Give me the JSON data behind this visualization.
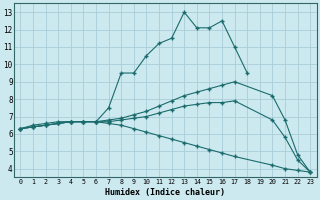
{
  "xlabel": "Humidex (Indice chaleur)",
  "bg_color": "#cce9f0",
  "grid_color": "#aacdd8",
  "line_color": "#1a6b6b",
  "xlim": [
    -0.5,
    23.5
  ],
  "ylim": [
    3.5,
    13.5
  ],
  "xticks": [
    0,
    1,
    2,
    3,
    4,
    5,
    6,
    7,
    8,
    9,
    10,
    11,
    12,
    13,
    14,
    15,
    16,
    17,
    18,
    19,
    20,
    21,
    22,
    23
  ],
  "yticks": [
    4,
    5,
    6,
    7,
    8,
    9,
    10,
    11,
    12,
    13
  ],
  "series1_x": [
    0,
    1,
    2,
    3,
    4,
    5,
    6,
    7,
    8,
    9,
    10,
    11,
    12,
    13,
    14,
    15,
    16,
    17,
    18
  ],
  "series1_y": [
    6.3,
    6.5,
    6.6,
    6.7,
    6.7,
    6.7,
    6.7,
    7.5,
    9.5,
    9.5,
    10.5,
    11.2,
    11.5,
    13.0,
    12.1,
    12.1,
    12.5,
    11.0,
    9.5
  ],
  "series2_x": [
    0,
    1,
    2,
    3,
    4,
    5,
    6,
    7,
    8,
    9,
    10,
    11,
    12,
    13,
    14,
    15,
    16,
    17,
    20,
    21,
    22,
    23
  ],
  "series2_y": [
    6.3,
    6.4,
    6.5,
    6.6,
    6.7,
    6.7,
    6.7,
    6.8,
    6.9,
    7.1,
    7.3,
    7.6,
    7.9,
    8.2,
    8.4,
    8.6,
    8.8,
    9.0,
    8.2,
    6.8,
    4.8,
    3.8
  ],
  "series3_x": [
    0,
    1,
    2,
    3,
    4,
    5,
    6,
    7,
    8,
    9,
    10,
    11,
    12,
    13,
    14,
    15,
    16,
    17,
    20,
    21,
    22,
    23
  ],
  "series3_y": [
    6.3,
    6.4,
    6.5,
    6.6,
    6.7,
    6.7,
    6.7,
    6.7,
    6.8,
    6.9,
    7.0,
    7.2,
    7.4,
    7.6,
    7.7,
    7.8,
    7.8,
    7.9,
    6.8,
    5.8,
    4.5,
    3.8
  ],
  "series4_x": [
    0,
    1,
    2,
    3,
    4,
    5,
    6,
    7,
    8,
    9,
    10,
    11,
    12,
    13,
    14,
    15,
    16,
    17,
    20,
    21,
    22,
    23
  ],
  "series4_y": [
    6.3,
    6.4,
    6.5,
    6.6,
    6.7,
    6.7,
    6.7,
    6.6,
    6.5,
    6.3,
    6.1,
    5.9,
    5.7,
    5.5,
    5.3,
    5.1,
    4.9,
    4.7,
    4.2,
    4.0,
    3.9,
    3.8
  ]
}
